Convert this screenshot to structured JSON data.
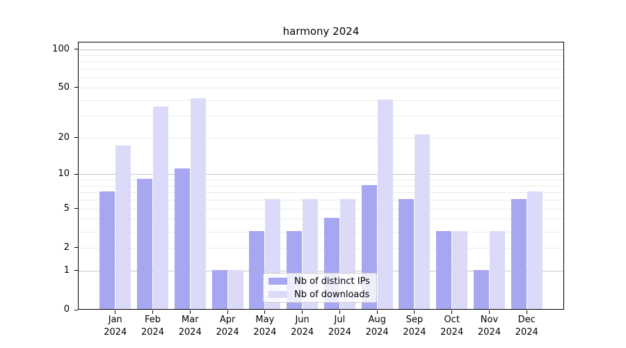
{
  "chart_data": {
    "type": "bar",
    "title": "harmony 2024",
    "categories": [
      {
        "month": "Jan",
        "year": "2024"
      },
      {
        "month": "Feb",
        "year": "2024"
      },
      {
        "month": "Mar",
        "year": "2024"
      },
      {
        "month": "Apr",
        "year": "2024"
      },
      {
        "month": "May",
        "year": "2024"
      },
      {
        "month": "Jun",
        "year": "2024"
      },
      {
        "month": "Jul",
        "year": "2024"
      },
      {
        "month": "Aug",
        "year": "2024"
      },
      {
        "month": "Sep",
        "year": "2024"
      },
      {
        "month": "Oct",
        "year": "2024"
      },
      {
        "month": "Nov",
        "year": "2024"
      },
      {
        "month": "Dec",
        "year": "2024"
      }
    ],
    "series": [
      {
        "name": "Nb of distinct IPs",
        "color": "#a6a6f1",
        "values": [
          7,
          9,
          11,
          1,
          3,
          3,
          4,
          8,
          6,
          3,
          1,
          6
        ]
      },
      {
        "name": "Nb of downloads",
        "color": "#dbdbf9",
        "values": [
          17,
          35,
          41,
          1,
          6,
          6,
          6,
          40,
          21,
          3,
          3,
          7
        ]
      }
    ],
    "yscale": "log1p",
    "ylim": [
      0,
      114
    ],
    "yticks": [
      0,
      1,
      2,
      5,
      10,
      20,
      50,
      100
    ],
    "major_gridlines": [
      1,
      10,
      100
    ],
    "minor_gridlines": [
      2,
      3,
      4,
      5,
      6,
      7,
      8,
      9,
      20,
      30,
      40,
      50,
      60,
      70,
      80,
      90
    ],
    "grid": true,
    "legend_position": "lower-center",
    "xlabel": "",
    "ylabel": ""
  },
  "colors": {
    "major_grid": "#c6c6c6",
    "minor_grid": "#ebebeb",
    "axis": "#000000",
    "legend_border": "#cccccc",
    "text": "#000000"
  }
}
